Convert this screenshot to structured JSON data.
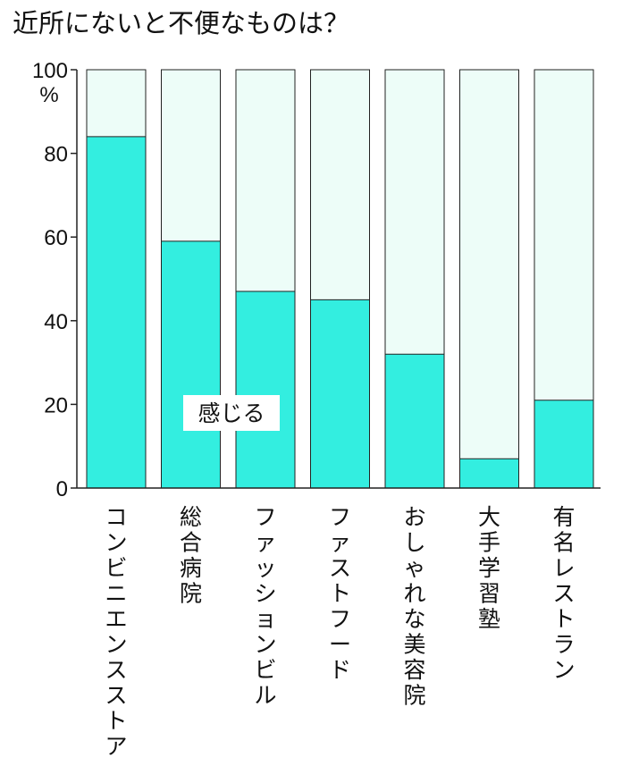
{
  "chart_data": {
    "type": "bar",
    "stacked_to_100": true,
    "title": "近所にないと不便なものは？",
    "ylabel": "",
    "xlabel": "",
    "ylim": [
      0,
      100
    ],
    "y_unit": "%",
    "yticks": [
      "0",
      "20",
      "40",
      "60",
      "80",
      "100"
    ],
    "grid": false,
    "categories": [
      "コンビニエンスストア",
      "総合病院",
      "ファッションビル",
      "ファストフード",
      "おしゃれな美容院",
      "大手学習塾",
      "有名レストラン"
    ],
    "series": [
      {
        "name": "感じる",
        "values": [
          84,
          59,
          47,
          45,
          32,
          7,
          21
        ],
        "color": "#33eee0"
      }
    ],
    "remainder_color": "#edfdf8",
    "annotation": {
      "text": "感じる"
    }
  }
}
